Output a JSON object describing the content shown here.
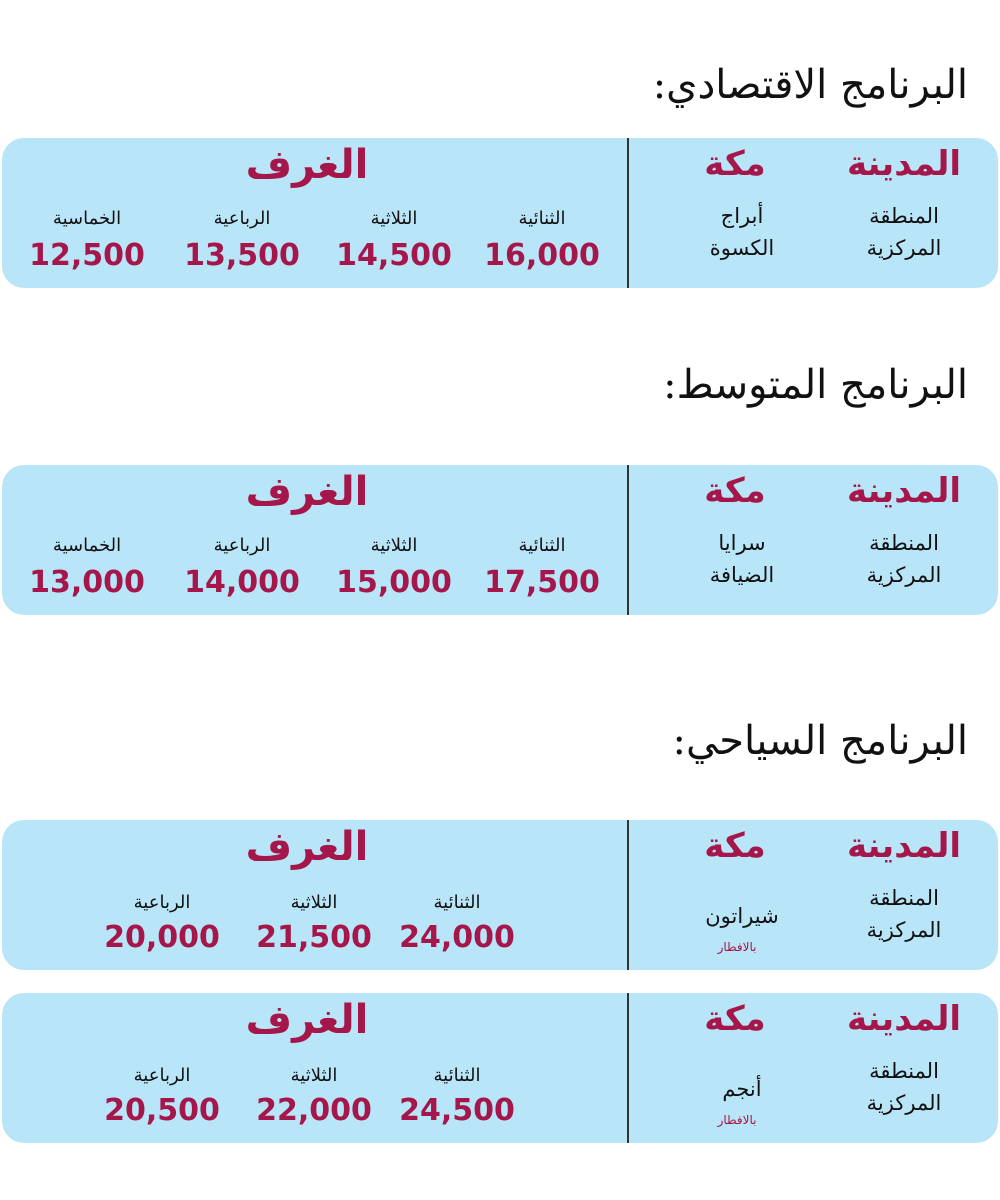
{
  "colors": {
    "panel": "#b9e5f8",
    "accent": "#a5174a",
    "text": "#111111"
  },
  "programs": [
    {
      "title": "البرنامج الاقتصادي:",
      "cards": [
        {
          "city_label": "المدينة",
          "city_area": [
            "المنطقة",
            "المركزية"
          ],
          "makkah_label": "مكة",
          "hotel": [
            "أبراج",
            "الكسوة"
          ],
          "note": "",
          "rooms_title": "الغرف",
          "rooms": [
            {
              "label": "الثنائية",
              "price": "16,000"
            },
            {
              "label": "الثلاثية",
              "price": "14,500"
            },
            {
              "label": "الرباعية",
              "price": "13,500"
            },
            {
              "label": "الخماسية",
              "price": "12,500"
            }
          ]
        }
      ]
    },
    {
      "title": "البرنامج المتوسط:",
      "cards": [
        {
          "city_label": "المدينة",
          "city_area": [
            "المنطقة",
            "المركزية"
          ],
          "makkah_label": "مكة",
          "hotel": [
            "سرايا",
            "الضيافة"
          ],
          "note": "",
          "rooms_title": "الغرف",
          "rooms": [
            {
              "label": "الثنائية",
              "price": "17,500"
            },
            {
              "label": "الثلاثية",
              "price": "15,000"
            },
            {
              "label": "الرباعية",
              "price": "14,000"
            },
            {
              "label": "الخماسية",
              "price": "13,000"
            }
          ]
        }
      ]
    },
    {
      "title": "البرنامج السياحي:",
      "cards": [
        {
          "city_label": "المدينة",
          "city_area": [
            "المنطقة",
            "المركزية"
          ],
          "makkah_label": "مكة",
          "hotel": [
            "شيراتون"
          ],
          "note": "بالافطار",
          "rooms_title": "الغرف",
          "rooms": [
            {
              "label": "الثنائية",
              "price": "24,000"
            },
            {
              "label": "الثلاثية",
              "price": "21,500"
            },
            {
              "label": "الرباعية",
              "price": "20,000"
            }
          ]
        },
        {
          "city_label": "المدينة",
          "city_area": [
            "المنطقة",
            "المركزية"
          ],
          "makkah_label": "مكة",
          "hotel": [
            "أنجم"
          ],
          "note": "بالافطار",
          "rooms_title": "الغرف",
          "rooms": [
            {
              "label": "الثنائية",
              "price": "24,500"
            },
            {
              "label": "الثلاثية",
              "price": "22,000"
            },
            {
              "label": "الرباعية",
              "price": "20,500"
            }
          ]
        }
      ]
    }
  ]
}
